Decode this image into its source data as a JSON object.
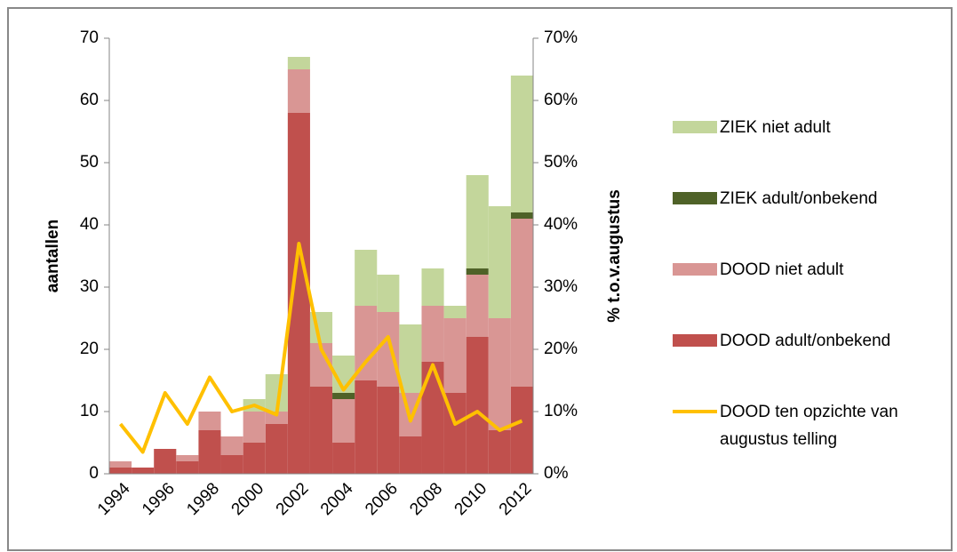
{
  "chart_data": {
    "type": "bar",
    "stacked": true,
    "categories": [
      "1994",
      null,
      "1996",
      null,
      "1998",
      null,
      "2000",
      null,
      "2002",
      null,
      "2004",
      null,
      "2006",
      null,
      "2008",
      null,
      "2010",
      null,
      "2012"
    ],
    "ylabel": "aantallen",
    "y2label": "% t.o.v.augustus",
    "ylim": [
      0,
      70
    ],
    "yticks": [
      0,
      10,
      20,
      30,
      40,
      50,
      60,
      70
    ],
    "y2lim": [
      0,
      70
    ],
    "y2ticks": [
      {
        "value": 0,
        "label": "0%"
      },
      {
        "value": 10,
        "label": "10%"
      },
      {
        "value": 20,
        "label": "20%"
      },
      {
        "value": 30,
        "label": "30%"
      },
      {
        "value": 40,
        "label": "40%"
      },
      {
        "value": 50,
        "label": "50%"
      },
      {
        "value": 60,
        "label": "60%"
      },
      {
        "value": 70,
        "label": "70%"
      }
    ],
    "legend": "right",
    "series": [
      {
        "name": "DOOD adult/onbekend",
        "color": "#c0504d",
        "values": [
          1,
          1,
          4,
          2,
          7,
          3,
          5,
          8,
          58,
          14,
          5,
          15,
          14,
          6,
          18,
          13,
          22,
          7,
          14
        ]
      },
      {
        "name": "DOOD niet adult",
        "color": "#d99694",
        "values": [
          1,
          0,
          0,
          1,
          3,
          3,
          5,
          2,
          7,
          7,
          7,
          12,
          12,
          7,
          9,
          12,
          10,
          18,
          27
        ]
      },
      {
        "name": "ZIEK adult/onbekend",
        "color": "#4f6228",
        "values": [
          0,
          0,
          0,
          0,
          0,
          0,
          0,
          0,
          0,
          0,
          1,
          0,
          0,
          0,
          0,
          0,
          1,
          0,
          1
        ]
      },
      {
        "name": "ZIEK niet adult",
        "color": "#c3d69b",
        "values": [
          0,
          0,
          0,
          0,
          0,
          0,
          2,
          6,
          2,
          5,
          6,
          9,
          6,
          11,
          6,
          2,
          15,
          18,
          22
        ]
      },
      {
        "name": "DOOD ten opzichte van augustus telling",
        "type": "line",
        "axis": "y2",
        "color": "#ffc000",
        "values": [
          8,
          3.5,
          13,
          8,
          15.5,
          10,
          11,
          9.5,
          37,
          20,
          13.5,
          18,
          22,
          8.5,
          17.5,
          8,
          10,
          7,
          8.5
        ]
      }
    ]
  }
}
